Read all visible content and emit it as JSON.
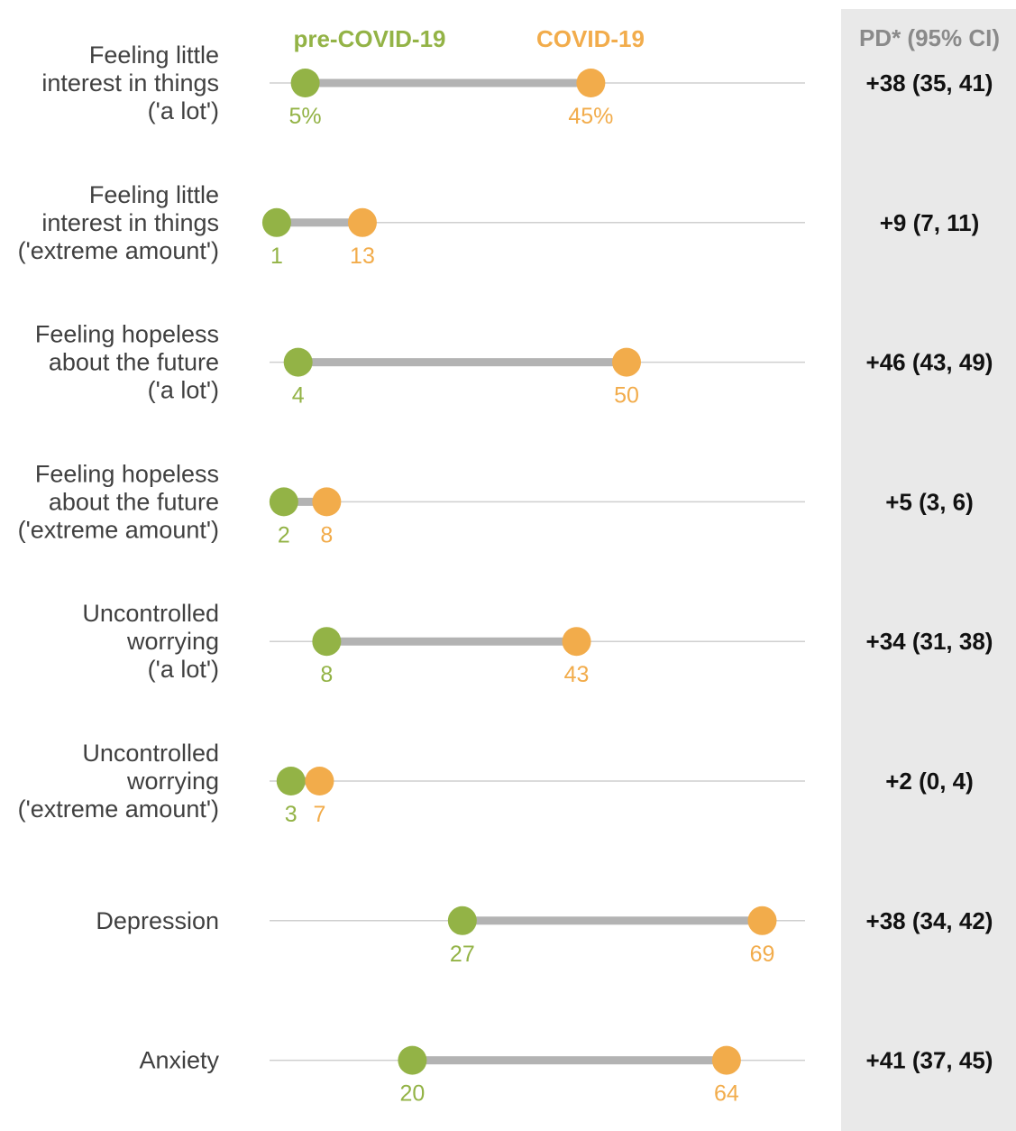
{
  "colors": {
    "pre": "#93b346",
    "covid": "#f2ac4b",
    "connector": "#b3b3b3",
    "baseline": "#cfcfcf",
    "panel": "#e9e9e9"
  },
  "legend": {
    "pre_label": "pre-COVID-19",
    "covid_label": "COVID-19"
  },
  "pd_header": "PD* (95% CI)",
  "chart_data": {
    "type": "dumbbell",
    "unit": "%",
    "xlim": [
      0,
      80
    ],
    "grid": false,
    "series": [
      {
        "name": "pre-COVID-19"
      },
      {
        "name": "COVID-19"
      }
    ],
    "rows": [
      {
        "label_lines": [
          "Feeling little",
          "interest in things",
          "('a lot')"
        ],
        "pre": 5,
        "covid": 45,
        "pre_label": "5%",
        "covid_label": "45%",
        "pd": "+38 (35, 41)"
      },
      {
        "label_lines": [
          "Feeling little",
          "interest in things",
          "('extreme amount')"
        ],
        "pre": 1,
        "covid": 13,
        "pre_label": "1",
        "covid_label": "13",
        "pd": "+9 (7, 11)"
      },
      {
        "label_lines": [
          "Feeling hopeless",
          "about the future",
          "('a lot')"
        ],
        "pre": 4,
        "covid": 50,
        "pre_label": "4",
        "covid_label": "50",
        "pd": "+46 (43, 49)"
      },
      {
        "label_lines": [
          "Feeling hopeless",
          "about the future",
          "('extreme amount')"
        ],
        "pre": 2,
        "covid": 8,
        "pre_label": "2",
        "covid_label": "8",
        "pd": "+5 (3, 6)"
      },
      {
        "label_lines": [
          "Uncontrolled",
          "worrying",
          "('a lot')"
        ],
        "pre": 8,
        "covid": 43,
        "pre_label": "8",
        "covid_label": "43",
        "pd": "+34 (31, 38)"
      },
      {
        "label_lines": [
          "Uncontrolled",
          "worrying",
          "('extreme amount')"
        ],
        "pre": 3,
        "covid": 7,
        "pre_label": "3",
        "covid_label": "7",
        "pd": "+2 (0, 4)"
      },
      {
        "label_lines": [
          "Depression"
        ],
        "pre": 27,
        "covid": 69,
        "pre_label": "27",
        "covid_label": "69",
        "pd": "+38 (34, 42)"
      },
      {
        "label_lines": [
          "Anxiety"
        ],
        "pre": 20,
        "covid": 64,
        "pre_label": "20",
        "covid_label": "64",
        "pd": "+41 (37, 45)"
      }
    ]
  }
}
